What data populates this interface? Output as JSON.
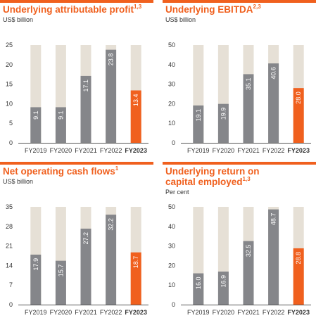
{
  "colors": {
    "accent": "#f0601e",
    "bar": "#85868a",
    "track": "#e6e0d6",
    "text": "#333333"
  },
  "chart_data": [
    {
      "type": "bar",
      "title": "Underlying attributable profit",
      "title_sup": "1,3",
      "unit": "US$ billion",
      "categories": [
        "FY2019",
        "FY2020",
        "FY2021",
        "FY2022",
        "FY2023"
      ],
      "value_labels": [
        "9.1",
        "9.1",
        "17.1",
        "23.8",
        "13.4"
      ],
      "values": [
        9.1,
        9.1,
        17.1,
        23.8,
        13.4
      ],
      "highlight_index": 4,
      "ylim": [
        0,
        25
      ],
      "yticks": [
        0,
        5,
        10,
        15,
        20,
        25
      ],
      "ytick_labels": [
        "0",
        "5",
        "10",
        "15",
        "20",
        "25"
      ]
    },
    {
      "type": "bar",
      "title": "Underlying EBITDA",
      "title_sup": "2,3",
      "unit": "US$ billion",
      "categories": [
        "FY2019",
        "FY2020",
        "FY2021",
        "FY2022",
        "FY2023"
      ],
      "value_labels": [
        "19.1",
        "19.9",
        "35.1",
        "40.6",
        "28.0"
      ],
      "values": [
        19.1,
        19.9,
        35.1,
        40.6,
        28.0
      ],
      "highlight_index": 4,
      "ylim": [
        0,
        50
      ],
      "yticks": [
        0,
        10,
        20,
        30,
        40,
        50
      ],
      "ytick_labels": [
        "0",
        "10",
        "20",
        "30",
        "40",
        "50"
      ]
    },
    {
      "type": "bar",
      "title": "Net operating cash flows",
      "title_sup": "1",
      "unit": "US$ billion",
      "categories": [
        "FY2019",
        "FY2020",
        "FY2021",
        "FY2022",
        "FY2023"
      ],
      "value_labels": [
        "17.9",
        "15.7",
        "27.2",
        "32.2",
        "18.7"
      ],
      "values": [
        17.9,
        15.7,
        27.2,
        32.2,
        18.7
      ],
      "highlight_index": 4,
      "ylim": [
        0,
        35
      ],
      "yticks": [
        0,
        7,
        14,
        21,
        28,
        35
      ],
      "ytick_labels": [
        "0",
        "7",
        "14",
        "21",
        "28",
        "35"
      ]
    },
    {
      "type": "bar",
      "title": "Underlying return on capital employed",
      "title_sup": "1,3",
      "unit": "Per cent",
      "categories": [
        "FY2019",
        "FY2020",
        "FY2021",
        "FY2022",
        "FY2023"
      ],
      "value_labels": [
        "16.0",
        "16.9",
        "32.5",
        "48.7",
        "28.8"
      ],
      "values": [
        16.0,
        16.9,
        32.5,
        48.7,
        28.8
      ],
      "highlight_index": 4,
      "ylim": [
        0,
        50
      ],
      "yticks": [
        0,
        10,
        20,
        30,
        40,
        50
      ],
      "ytick_labels": [
        "0",
        "10",
        "20",
        "30",
        "40",
        "50"
      ]
    }
  ]
}
